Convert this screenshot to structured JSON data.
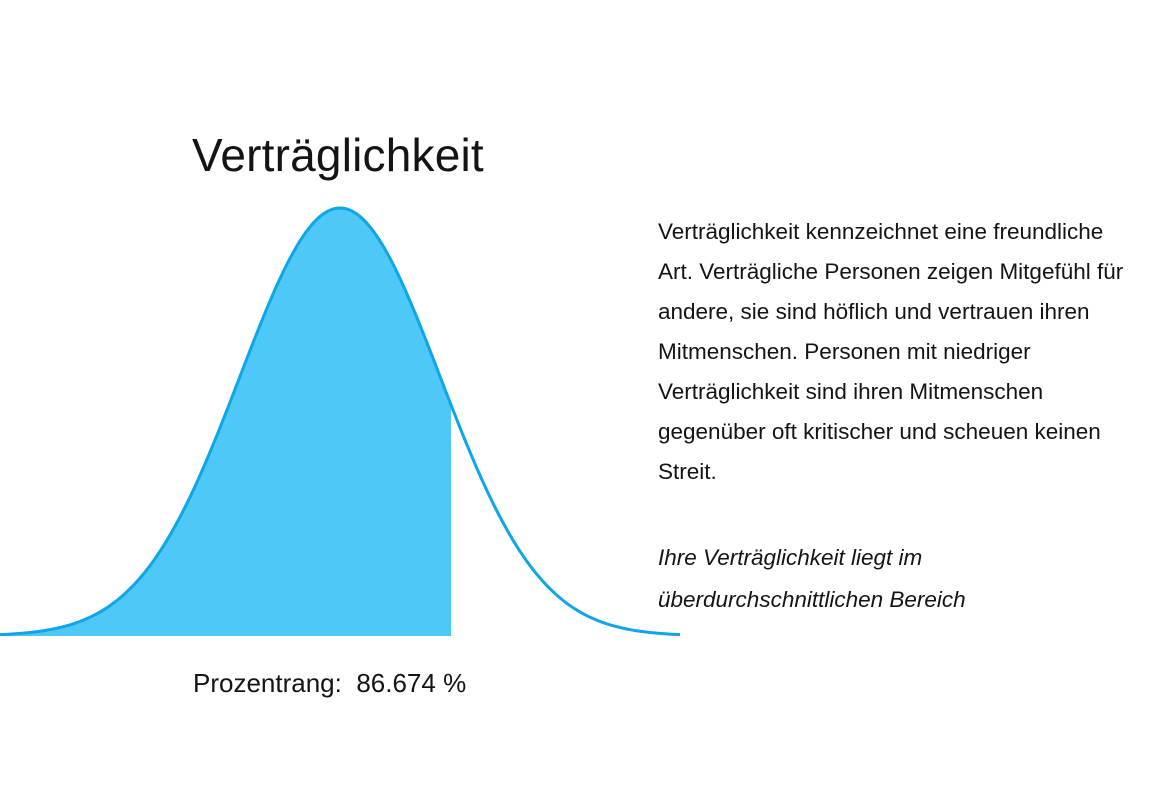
{
  "chart_data": {
    "type": "area",
    "title": "Verträglichkeit",
    "distribution": "normal",
    "x_range_sd": [
      -3.4,
      3.4
    ],
    "percentile": 86.674,
    "colors": {
      "fill": "#4dc8f7",
      "line": "#0ea5e9"
    }
  },
  "percentile_label": "Prozentrang:",
  "percentile_value": "86.674 %",
  "description": "Verträglichkeit kennzeichnet eine freundliche Art. Verträgliche Personen zeigen Mitgefühl für andere, sie sind höflich und vertrauen ihren Mitmenschen. Personen mit niedriger Verträglichkeit sind ihren Mitmenschen gegenüber oft kritischer und scheuen keinen Streit.",
  "verdict": "Ihre Verträglichkeit liegt im überdurchschnittlichen Bereich"
}
